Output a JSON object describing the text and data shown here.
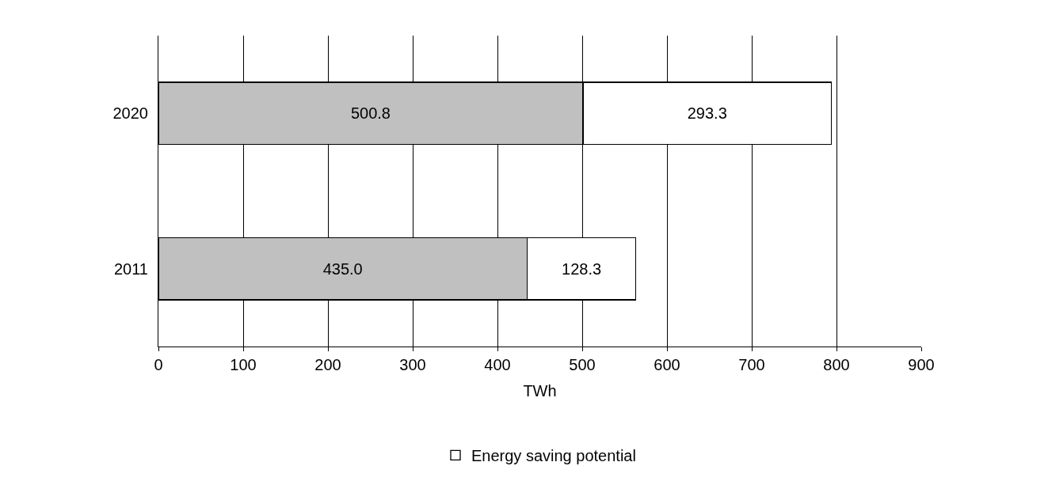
{
  "chart_data": {
    "type": "bar",
    "orientation": "horizontal",
    "stacked": true,
    "xlabel": "TWh",
    "categories": [
      "2020",
      "2011"
    ],
    "series": [
      {
        "color": "#c0c0c0",
        "values": [
          500.8,
          435.0
        ],
        "value_labels": [
          "500.8",
          "435.0"
        ]
      },
      {
        "name": "Energy saving potential",
        "color": "#ffffff",
        "values": [
          293.3,
          128.3
        ],
        "value_labels": [
          "293.3",
          "128.3"
        ]
      }
    ],
    "xlim": [
      0,
      900
    ],
    "xticks": [
      0,
      100,
      200,
      300,
      400,
      500,
      600,
      700,
      800,
      900
    ],
    "grid": "x",
    "legend": "bottom"
  }
}
